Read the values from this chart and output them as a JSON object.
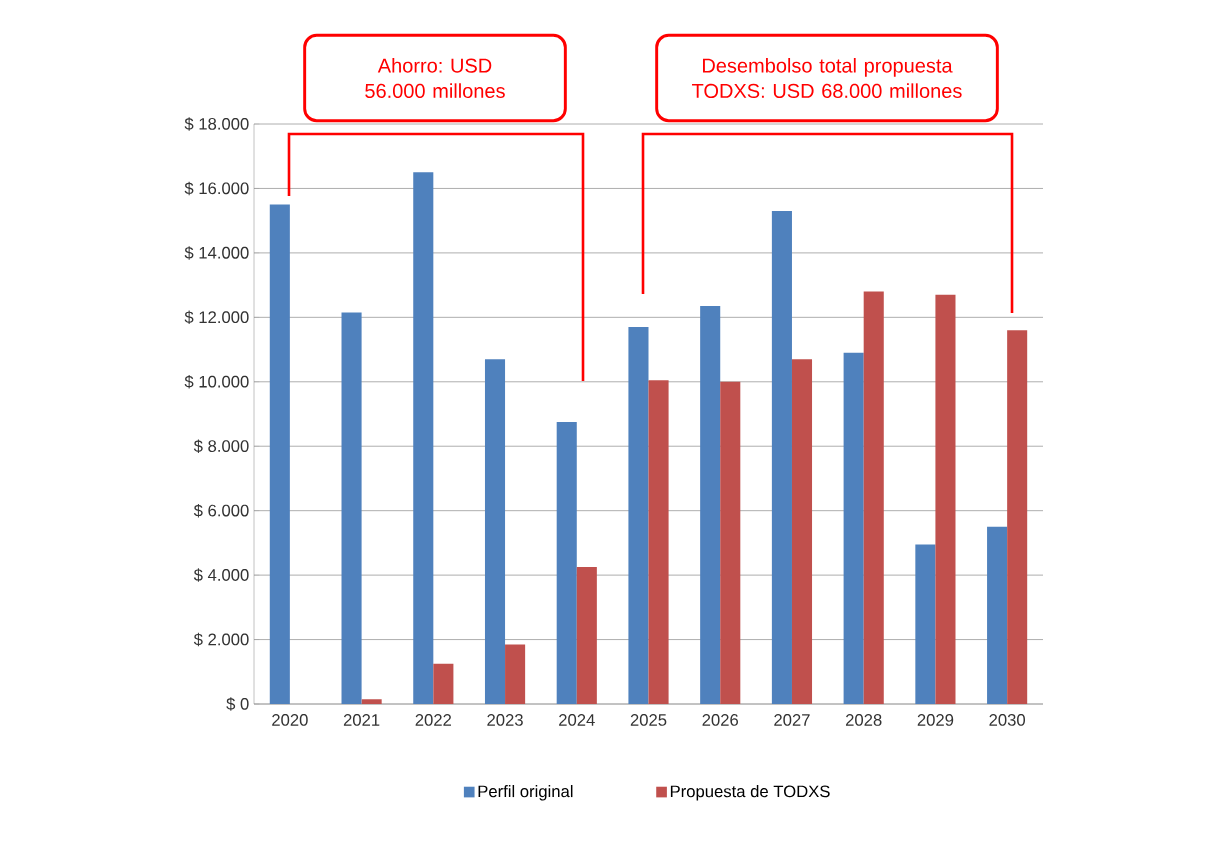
{
  "chart_data": {
    "type": "bar",
    "categories": [
      "2020",
      "2021",
      "2022",
      "2023",
      "2024",
      "2025",
      "2026",
      "2027",
      "2028",
      "2029",
      "2030"
    ],
    "series": [
      {
        "name": "Perfil original",
        "color": "#4f81bd",
        "values": [
          15500,
          12150,
          16500,
          10700,
          8750,
          11700,
          12350,
          15300,
          10900,
          4950,
          5500
        ]
      },
      {
        "name": "Propuesta de TODXS",
        "color": "#c0504d",
        "values": [
          null,
          150,
          1250,
          1850,
          4250,
          10050,
          10000,
          10700,
          12800,
          12700,
          11600
        ]
      }
    ],
    "ylim": [
      0,
      18000
    ],
    "yticks": [
      {
        "value": 0,
        "label": "$ 0"
      },
      {
        "value": 2000,
        "label": "$ 2.000"
      },
      {
        "value": 4000,
        "label": "$ 4.000"
      },
      {
        "value": 6000,
        "label": "$ 6.000"
      },
      {
        "value": 8000,
        "label": "$ 8.000"
      },
      {
        "value": 10000,
        "label": "$ 10.000"
      },
      {
        "value": 12000,
        "label": "$ 12.000"
      },
      {
        "value": 14000,
        "label": "$ 14.000"
      },
      {
        "value": 16000,
        "label": "$ 16.000"
      },
      {
        "value": 18000,
        "label": "$ 18.000"
      }
    ],
    "grid": "y",
    "legend": "bottom",
    "annotations": [
      "Ahorro: USD 56.000 millones",
      "Desembolso total propuesta TODXS: USD 68.000 millones"
    ]
  }
}
